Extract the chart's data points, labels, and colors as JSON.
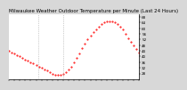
{
  "title": "Milwaukee Weather Outdoor Temperature per Minute (Last 24 Hours)",
  "title_fontsize": 4.0,
  "line_color": "red",
  "marker": ".",
  "markersize": 1.0,
  "bg_color": "#d8d8d8",
  "plot_bg_color": "#ffffff",
  "vline_positions": [
    320,
    600
  ],
  "vline_color": "#a0a0a0",
  "vline_style": ":",
  "vline_lw": 0.5,
  "xlim": [
    0,
    1440
  ],
  "ylim": [
    24,
    70
  ],
  "yticks": [
    28,
    32,
    36,
    40,
    44,
    48,
    52,
    56,
    60,
    64,
    68
  ],
  "ytick_fontsize": 3.0,
  "xtick_fontsize": 3.0,
  "num_xticks": 25,
  "x_data": [
    0,
    30,
    60,
    90,
    120,
    150,
    180,
    210,
    240,
    270,
    300,
    330,
    360,
    390,
    420,
    450,
    480,
    510,
    540,
    570,
    600,
    630,
    660,
    690,
    720,
    750,
    780,
    810,
    840,
    870,
    900,
    930,
    960,
    990,
    1020,
    1050,
    1080,
    1110,
    1140,
    1170,
    1200,
    1230,
    1260,
    1290,
    1320,
    1350,
    1380,
    1410,
    1440
  ],
  "y_data": [
    44,
    43,
    42,
    41,
    40,
    39,
    38,
    37,
    36,
    35,
    34,
    33,
    32,
    31,
    30,
    29,
    28,
    27,
    27,
    27,
    28,
    29,
    31,
    33,
    36,
    39,
    42,
    46,
    49,
    52,
    55,
    57,
    59,
    61,
    63,
    64,
    65,
    65,
    65,
    64,
    63,
    61,
    59,
    56,
    53,
    50,
    48,
    45,
    43
  ],
  "spine_lw": 0.5
}
